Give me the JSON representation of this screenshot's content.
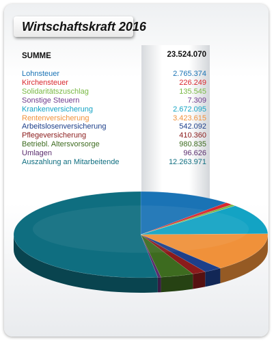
{
  "chart_data": {
    "type": "pie",
    "title": "Wirtschaftskraft 2016",
    "total_label": "SUMME",
    "total_value": "23.524.070",
    "slices": [
      {
        "label": "Lohnsteuer",
        "value": 2765374,
        "display": "2.765.374",
        "color": "#1a73b5"
      },
      {
        "label": "Kirchensteuer",
        "value": 226249,
        "display": "226.249",
        "color": "#d9272e"
      },
      {
        "label": "Solidaritätszuschlag",
        "value": 135545,
        "display": "135.545",
        "color": "#78b843"
      },
      {
        "label": "Sonstige Steuern",
        "value": 7309,
        "display": "7.309",
        "color": "#6f3b8d"
      },
      {
        "label": "Krankenversicherung",
        "value": 2672095,
        "display": "2.672.095",
        "color": "#13a3c4"
      },
      {
        "label": "Rentenversicherung",
        "value": 3423615,
        "display": "3.423.615",
        "color": "#f0913a"
      },
      {
        "label": "Arbeitslosenversicherung",
        "value": 542092,
        "display": "542.092",
        "color": "#1d3f8a"
      },
      {
        "label": "Pflegeversicherung",
        "value": 410360,
        "display": "410.360",
        "color": "#8b1b1b"
      },
      {
        "label": "Betriebl. Altersvorsorge",
        "value": 980835,
        "display": "980.835",
        "color": "#3d6b1f"
      },
      {
        "label": "Umlagen",
        "value": 96626,
        "display": "96.626",
        "color": "#5a2d6e"
      },
      {
        "label": "Auszahlung an Mitarbeitende",
        "value": 12263971,
        "display": "12.263.971",
        "color": "#0f6e80"
      }
    ]
  }
}
